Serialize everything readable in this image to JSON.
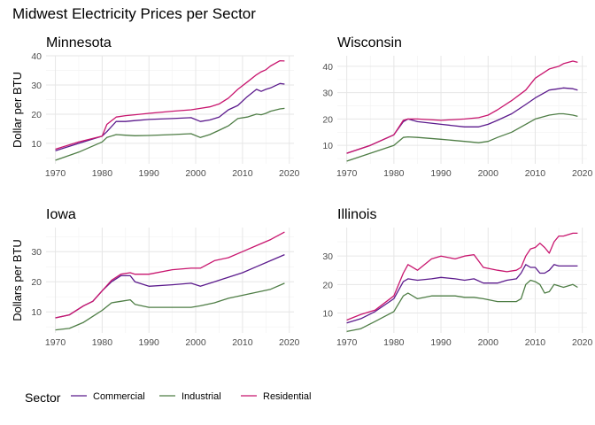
{
  "figure": {
    "title": "Midwest Electricity Prices per Sector",
    "legend_title": "Sector"
  },
  "colors": {
    "Commercial": "#5b1a8c",
    "Industrial": "#4e7d45",
    "Residential": "#c8156e",
    "grid_major": "#e6e6e6",
    "grid_minor": "#f2f2f2",
    "tick_text": "#4d4d4d"
  },
  "legend": {
    "position": "bottom-left",
    "entries": [
      "Commercial",
      "Industrial",
      "Residential"
    ]
  },
  "chart_data": [
    {
      "type": "line",
      "title": "Minnesota",
      "xlabel": "",
      "ylabel": "Dollar per BTU",
      "xlim": [
        1968,
        2021
      ],
      "ylim": [
        3,
        40
      ],
      "xticks": [
        1970,
        1980,
        1990,
        2000,
        2010,
        2020
      ],
      "yticks": [
        10,
        20,
        30,
        40
      ],
      "grid": true,
      "x": [
        1970,
        1975,
        1980,
        1981,
        1983,
        1985,
        1987,
        1990,
        1995,
        1999,
        2001,
        2003,
        2005,
        2007,
        2009,
        2011,
        2013,
        2014,
        2015,
        2016,
        2018,
        2019
      ],
      "series": [
        {
          "name": "Commercial",
          "values": [
            7.5,
            10,
            12.5,
            14,
            17.5,
            17.5,
            17.8,
            18.2,
            18.5,
            18.8,
            17.5,
            18,
            19,
            21.5,
            23,
            26,
            28.5,
            27.8,
            28.5,
            29,
            30.5,
            30.3
          ]
        },
        {
          "name": "Industrial",
          "values": [
            4.2,
            7,
            10.5,
            12,
            13,
            12.8,
            12.6,
            12.7,
            13,
            13.3,
            12,
            13,
            14.5,
            16,
            18.5,
            19,
            20,
            19.8,
            20.3,
            21,
            21.8,
            22
          ]
        },
        {
          "name": "Residential",
          "values": [
            8,
            10.5,
            12.5,
            16.5,
            19,
            19.5,
            19.8,
            20.3,
            21,
            21.5,
            22,
            22.5,
            23.5,
            25.5,
            28.5,
            31,
            33.5,
            34.5,
            35.2,
            36.5,
            38.3,
            38.2
          ]
        }
      ]
    },
    {
      "type": "line",
      "title": "Wisconsin",
      "xlabel": "",
      "ylabel": "",
      "xlim": [
        1968,
        2021
      ],
      "ylim": [
        3,
        44
      ],
      "xticks": [
        1970,
        1980,
        1990,
        2000,
        2010,
        2020
      ],
      "yticks": [
        10,
        20,
        30,
        40
      ],
      "grid": true,
      "x": [
        1970,
        1975,
        1980,
        1982,
        1983,
        1985,
        1990,
        1995,
        1998,
        2000,
        2002,
        2005,
        2008,
        2010,
        2013,
        2015,
        2016,
        2018,
        2019
      ],
      "series": [
        {
          "name": "Commercial",
          "values": [
            7,
            10,
            14,
            19,
            20,
            19,
            18,
            17,
            17,
            18,
            19.5,
            22,
            25.5,
            28,
            31,
            31.5,
            31.8,
            31.5,
            31
          ]
        },
        {
          "name": "Industrial",
          "values": [
            4,
            7,
            10,
            13,
            13.2,
            13,
            12.3,
            11.5,
            11,
            11.5,
            13,
            15,
            18,
            20,
            21.5,
            22,
            22,
            21.5,
            21
          ]
        },
        {
          "name": "Residential",
          "values": [
            7,
            10,
            14,
            19.5,
            20,
            20,
            19.5,
            20,
            20.5,
            21.5,
            23.5,
            27,
            31,
            35.5,
            39,
            40,
            41,
            42,
            41.5
          ]
        }
      ]
    },
    {
      "type": "line",
      "title": "Iowa",
      "xlabel": "",
      "ylabel": "Dollars per BTU",
      "xlim": [
        1968,
        2021
      ],
      "ylim": [
        3,
        38
      ],
      "xticks": [
        1970,
        1980,
        1990,
        2000,
        2010,
        2020
      ],
      "yticks": [
        10,
        20,
        30
      ],
      "grid": true,
      "x": [
        1970,
        1973,
        1976,
        1978,
        1980,
        1982,
        1984,
        1986,
        1987,
        1990,
        1995,
        1999,
        2001,
        2004,
        2007,
        2010,
        2013,
        2016,
        2019
      ],
      "series": [
        {
          "name": "Commercial",
          "values": [
            8,
            9,
            12,
            13.5,
            17,
            20,
            22,
            22,
            20,
            18.5,
            19,
            19.5,
            18.5,
            20,
            21.5,
            23,
            25,
            27,
            29
          ]
        },
        {
          "name": "Industrial",
          "values": [
            4,
            4.5,
            6.5,
            8.5,
            10.5,
            13,
            13.5,
            14,
            12.5,
            11.5,
            11.5,
            11.5,
            12,
            13,
            14.5,
            15.5,
            16.5,
            17.5,
            19.5
          ]
        },
        {
          "name": "Residential",
          "values": [
            8,
            9,
            12,
            13.5,
            17,
            20.5,
            22.5,
            23,
            22.5,
            22.5,
            24,
            24.5,
            24.5,
            27,
            28,
            30,
            32,
            34,
            36.5
          ]
        }
      ]
    },
    {
      "type": "line",
      "title": "Illinois",
      "xlabel": "",
      "ylabel": "",
      "xlim": [
        1968,
        2021
      ],
      "ylim": [
        3,
        40
      ],
      "xticks": [
        1970,
        1980,
        1990,
        2000,
        2010,
        2020
      ],
      "yticks": [
        10,
        20,
        30
      ],
      "grid": true,
      "x": [
        1970,
        1973,
        1976,
        1980,
        1982,
        1983,
        1985,
        1988,
        1990,
        1993,
        1995,
        1997,
        1999,
        2002,
        2004,
        2006,
        2007,
        2008,
        2009,
        2010,
        2011,
        2012,
        2013,
        2014,
        2015,
        2016,
        2018,
        2019
      ],
      "series": [
        {
          "name": "Commercial",
          "values": [
            6.5,
            8,
            10.5,
            15,
            21,
            22,
            21.5,
            22,
            22.5,
            22,
            21.5,
            22,
            20.5,
            20.5,
            21.5,
            22,
            24,
            27,
            26,
            26,
            24,
            24,
            25,
            27,
            26.5,
            26.5,
            26.5,
            26.5
          ]
        },
        {
          "name": "Industrial",
          "values": [
            3.5,
            4.5,
            7,
            10.5,
            16,
            17,
            15,
            16,
            16,
            16,
            15.5,
            15.5,
            15,
            14,
            14,
            14,
            15,
            20,
            21.5,
            21,
            20,
            17,
            17.5,
            20,
            19.5,
            19,
            20,
            19
          ]
        },
        {
          "name": "Residential",
          "values": [
            7.5,
            9.5,
            11,
            16,
            24,
            27,
            25,
            29,
            30,
            29,
            30,
            30.5,
            26,
            25,
            24.5,
            25,
            26,
            30,
            32.5,
            33,
            34.5,
            33,
            31,
            35,
            37,
            37,
            38,
            38
          ]
        }
      ]
    }
  ]
}
